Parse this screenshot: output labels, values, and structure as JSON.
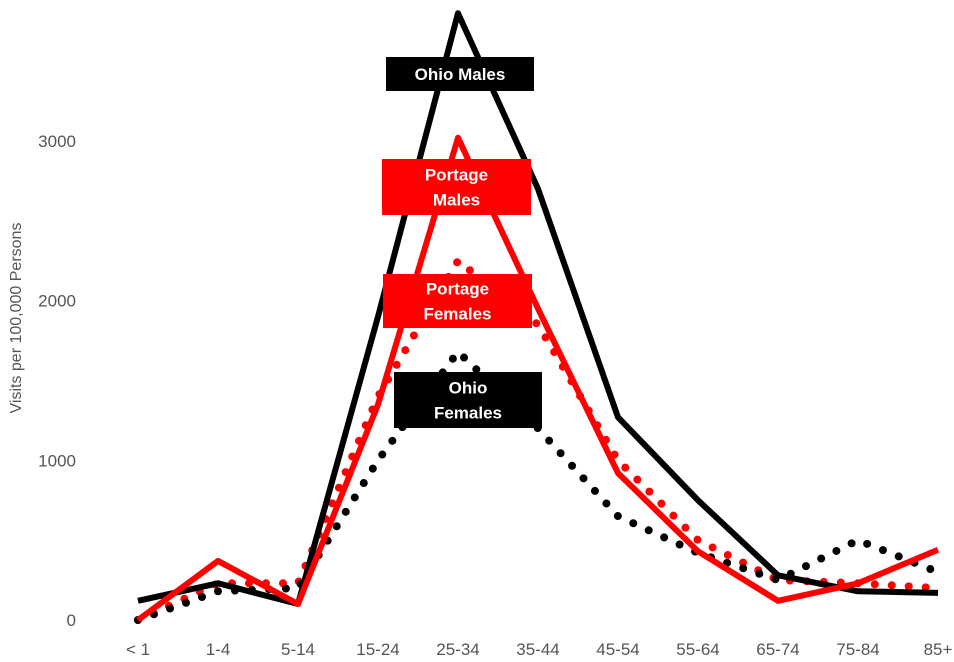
{
  "chart_data": {
    "type": "line",
    "title": "",
    "xlabel": "",
    "ylabel": "Visits per 100,000 Persons",
    "categories": [
      "< 1",
      "1-4",
      "5-14",
      "15-24",
      "25-34",
      "35-44",
      "45-54",
      "55-64",
      "65-74",
      "75-84",
      "85+"
    ],
    "ylim": [
      0,
      3800
    ],
    "yticks": [
      0,
      1000,
      2000,
      3000
    ],
    "grid": false,
    "series": [
      {
        "name": "Ohio Males",
        "label_lines": [
          "Ohio Males"
        ],
        "color": "#000000",
        "style": "solid",
        "values": [
          120,
          230,
          100,
          1900,
          3800,
          2700,
          1270,
          750,
          280,
          180,
          170
        ]
      },
      {
        "name": "Portage Males",
        "label_lines": [
          "Portage",
          "Males"
        ],
        "color": "#ff0000",
        "style": "solid",
        "values": [
          0,
          370,
          100,
          1350,
          3020,
          1950,
          920,
          430,
          120,
          230,
          440
        ]
      },
      {
        "name": "Portage Females",
        "label_lines": [
          "Portage",
          "Females"
        ],
        "color": "#ff0000",
        "style": "dotted",
        "values": [
          0,
          230,
          230,
          1400,
          2250,
          1850,
          1000,
          500,
          250,
          230,
          200
        ]
      },
      {
        "name": "Ohio Females",
        "label_lines": [
          "Ohio",
          "Females"
        ],
        "color": "#000000",
        "style": "dotted",
        "values": [
          0,
          180,
          200,
          1000,
          1680,
          1200,
          650,
          420,
          250,
          500,
          300
        ]
      }
    ]
  }
}
